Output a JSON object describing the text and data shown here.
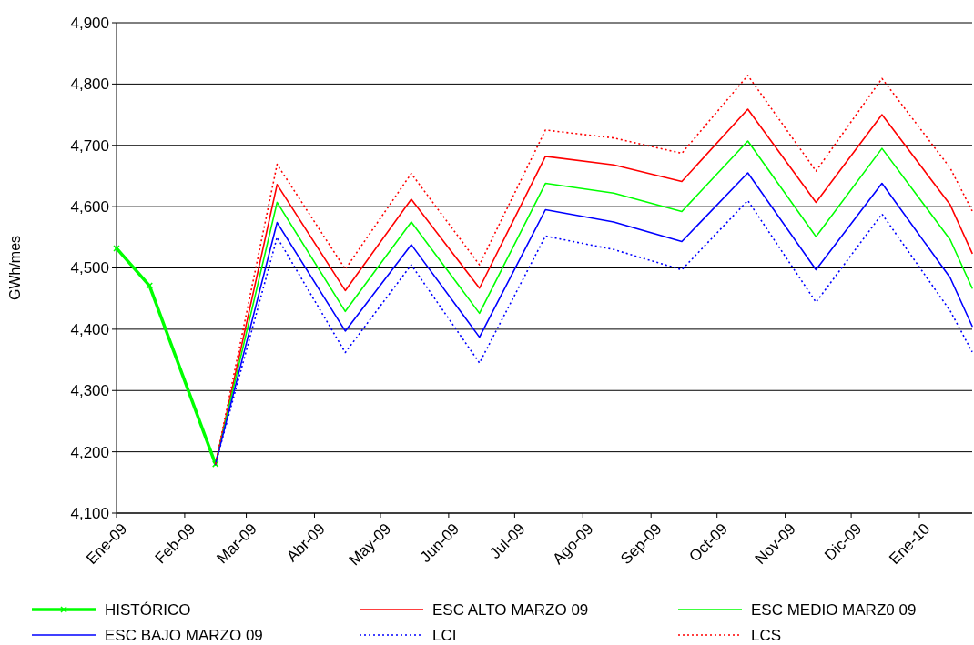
{
  "chart_data": {
    "type": "line",
    "ylabel": "GWh/mes",
    "xlim": [
      "2009-01-01",
      "2010-01-25"
    ],
    "ylim": [
      4100,
      4900
    ],
    "yticks": [
      {
        "value": 4100,
        "label": "4,100"
      },
      {
        "value": 4200,
        "label": "4,200"
      },
      {
        "value": 4300,
        "label": "4,300"
      },
      {
        "value": 4400,
        "label": "4,400"
      },
      {
        "value": 4500,
        "label": "4,500"
      },
      {
        "value": 4600,
        "label": "4,600"
      },
      {
        "value": 4700,
        "label": "4,700"
      },
      {
        "value": 4800,
        "label": "4,800"
      },
      {
        "value": 4900,
        "label": "4,900"
      }
    ],
    "xticks": [
      {
        "value": "2009-01-01",
        "label": "Ene-09"
      },
      {
        "value": "2009-02-01",
        "label": "Feb-09"
      },
      {
        "value": "2009-03-01",
        "label": "Mar-09"
      },
      {
        "value": "2009-04-01",
        "label": "Abr-09"
      },
      {
        "value": "2009-05-01",
        "label": "May-09"
      },
      {
        "value": "2009-06-01",
        "label": "Jun-09"
      },
      {
        "value": "2009-07-01",
        "label": "Jul-09"
      },
      {
        "value": "2009-08-01",
        "label": "Ago-09"
      },
      {
        "value": "2009-09-01",
        "label": "Sep-09"
      },
      {
        "value": "2009-10-01",
        "label": "Oct-09"
      },
      {
        "value": "2009-11-01",
        "label": "Nov-09"
      },
      {
        "value": "2009-12-01",
        "label": "Dic-09"
      },
      {
        "value": "2010-01-01",
        "label": "Ene-10"
      }
    ],
    "grid": "y",
    "legend": "bottom",
    "series": [
      {
        "name": "HISTÓRICO",
        "color": "#00ff00",
        "marker": "cross",
        "x": [
          "2009-01-01",
          "2009-01-16",
          "2009-02-15"
        ],
        "values": [
          4532,
          4471,
          4180
        ]
      },
      {
        "name": "ESC ALTO MARZO 09",
        "color": "#ff0000",
        "marker": "none",
        "x": [
          "2009-02-15",
          "2009-03-15",
          "2009-04-15",
          "2009-05-15",
          "2009-06-15",
          "2009-07-15",
          "2009-08-15",
          "2009-09-15",
          "2009-10-15",
          "2009-11-15",
          "2009-12-15",
          "2010-01-15",
          "2010-01-25"
        ],
        "values": [
          4180,
          4636,
          4463,
          4612,
          4467,
          4682,
          4668,
          4641,
          4759,
          4607,
          4750,
          4603,
          4524
        ]
      },
      {
        "name": "ESC MEDIO MARZ0 09",
        "color": "#00ff00",
        "marker": "none",
        "x": [
          "2009-02-15",
          "2009-03-15",
          "2009-04-15",
          "2009-05-15",
          "2009-06-15",
          "2009-07-15",
          "2009-08-15",
          "2009-09-15",
          "2009-10-15",
          "2009-11-15",
          "2009-12-15",
          "2010-01-15",
          "2010-01-25"
        ],
        "values": [
          4180,
          4607,
          4429,
          4575,
          4426,
          4638,
          4622,
          4592,
          4707,
          4551,
          4695,
          4546,
          4467
        ]
      },
      {
        "name": "ESC BAJO MARZO 09",
        "color": "#0000ff",
        "marker": "none",
        "x": [
          "2009-02-15",
          "2009-03-15",
          "2009-04-15",
          "2009-05-15",
          "2009-06-15",
          "2009-07-15",
          "2009-08-15",
          "2009-09-15",
          "2009-10-15",
          "2009-11-15",
          "2009-12-15",
          "2010-01-15",
          "2010-01-25"
        ],
        "values": [
          4180,
          4574,
          4397,
          4538,
          4387,
          4595,
          4575,
          4543,
          4655,
          4497,
          4638,
          4484,
          4405
        ]
      },
      {
        "name": "LCI",
        "color": "#0000ff",
        "marker": "none",
        "line_style": "dotted",
        "x": [
          "2009-02-15",
          "2009-03-15",
          "2009-04-15",
          "2009-05-15",
          "2009-06-15",
          "2009-07-15",
          "2009-08-15",
          "2009-09-15",
          "2009-10-15",
          "2009-11-15",
          "2009-12-15",
          "2010-01-15",
          "2010-01-25"
        ],
        "values": [
          4180,
          4550,
          4362,
          4505,
          4345,
          4552,
          4530,
          4497,
          4610,
          4444,
          4588,
          4430,
          4363
        ]
      },
      {
        "name": "LCS",
        "color": "#ff0000",
        "marker": "none",
        "line_style": "dotted",
        "x": [
          "2009-02-15",
          "2009-03-15",
          "2009-04-15",
          "2009-05-15",
          "2009-06-15",
          "2009-07-15",
          "2009-08-15",
          "2009-09-15",
          "2009-10-15",
          "2009-11-15",
          "2009-12-15",
          "2010-01-15",
          "2010-01-25"
        ],
        "values": [
          4180,
          4669,
          4498,
          4654,
          4505,
          4725,
          4712,
          4687,
          4814,
          4658,
          4809,
          4663,
          4593
        ]
      }
    ]
  }
}
